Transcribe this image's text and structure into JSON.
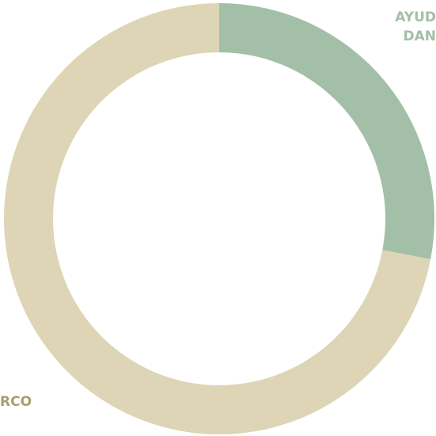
{
  "chart_data": {
    "type": "donut",
    "categories": [
      [
        "AYUD",
        "DAN"
      ],
      [
        "RCO"
      ]
    ],
    "values": [
      28,
      72
    ],
    "colors": [
      "#a4bfa7",
      "#ddd5b5"
    ],
    "label_colors": [
      "#a4bfa7",
      "#a89e70"
    ]
  }
}
